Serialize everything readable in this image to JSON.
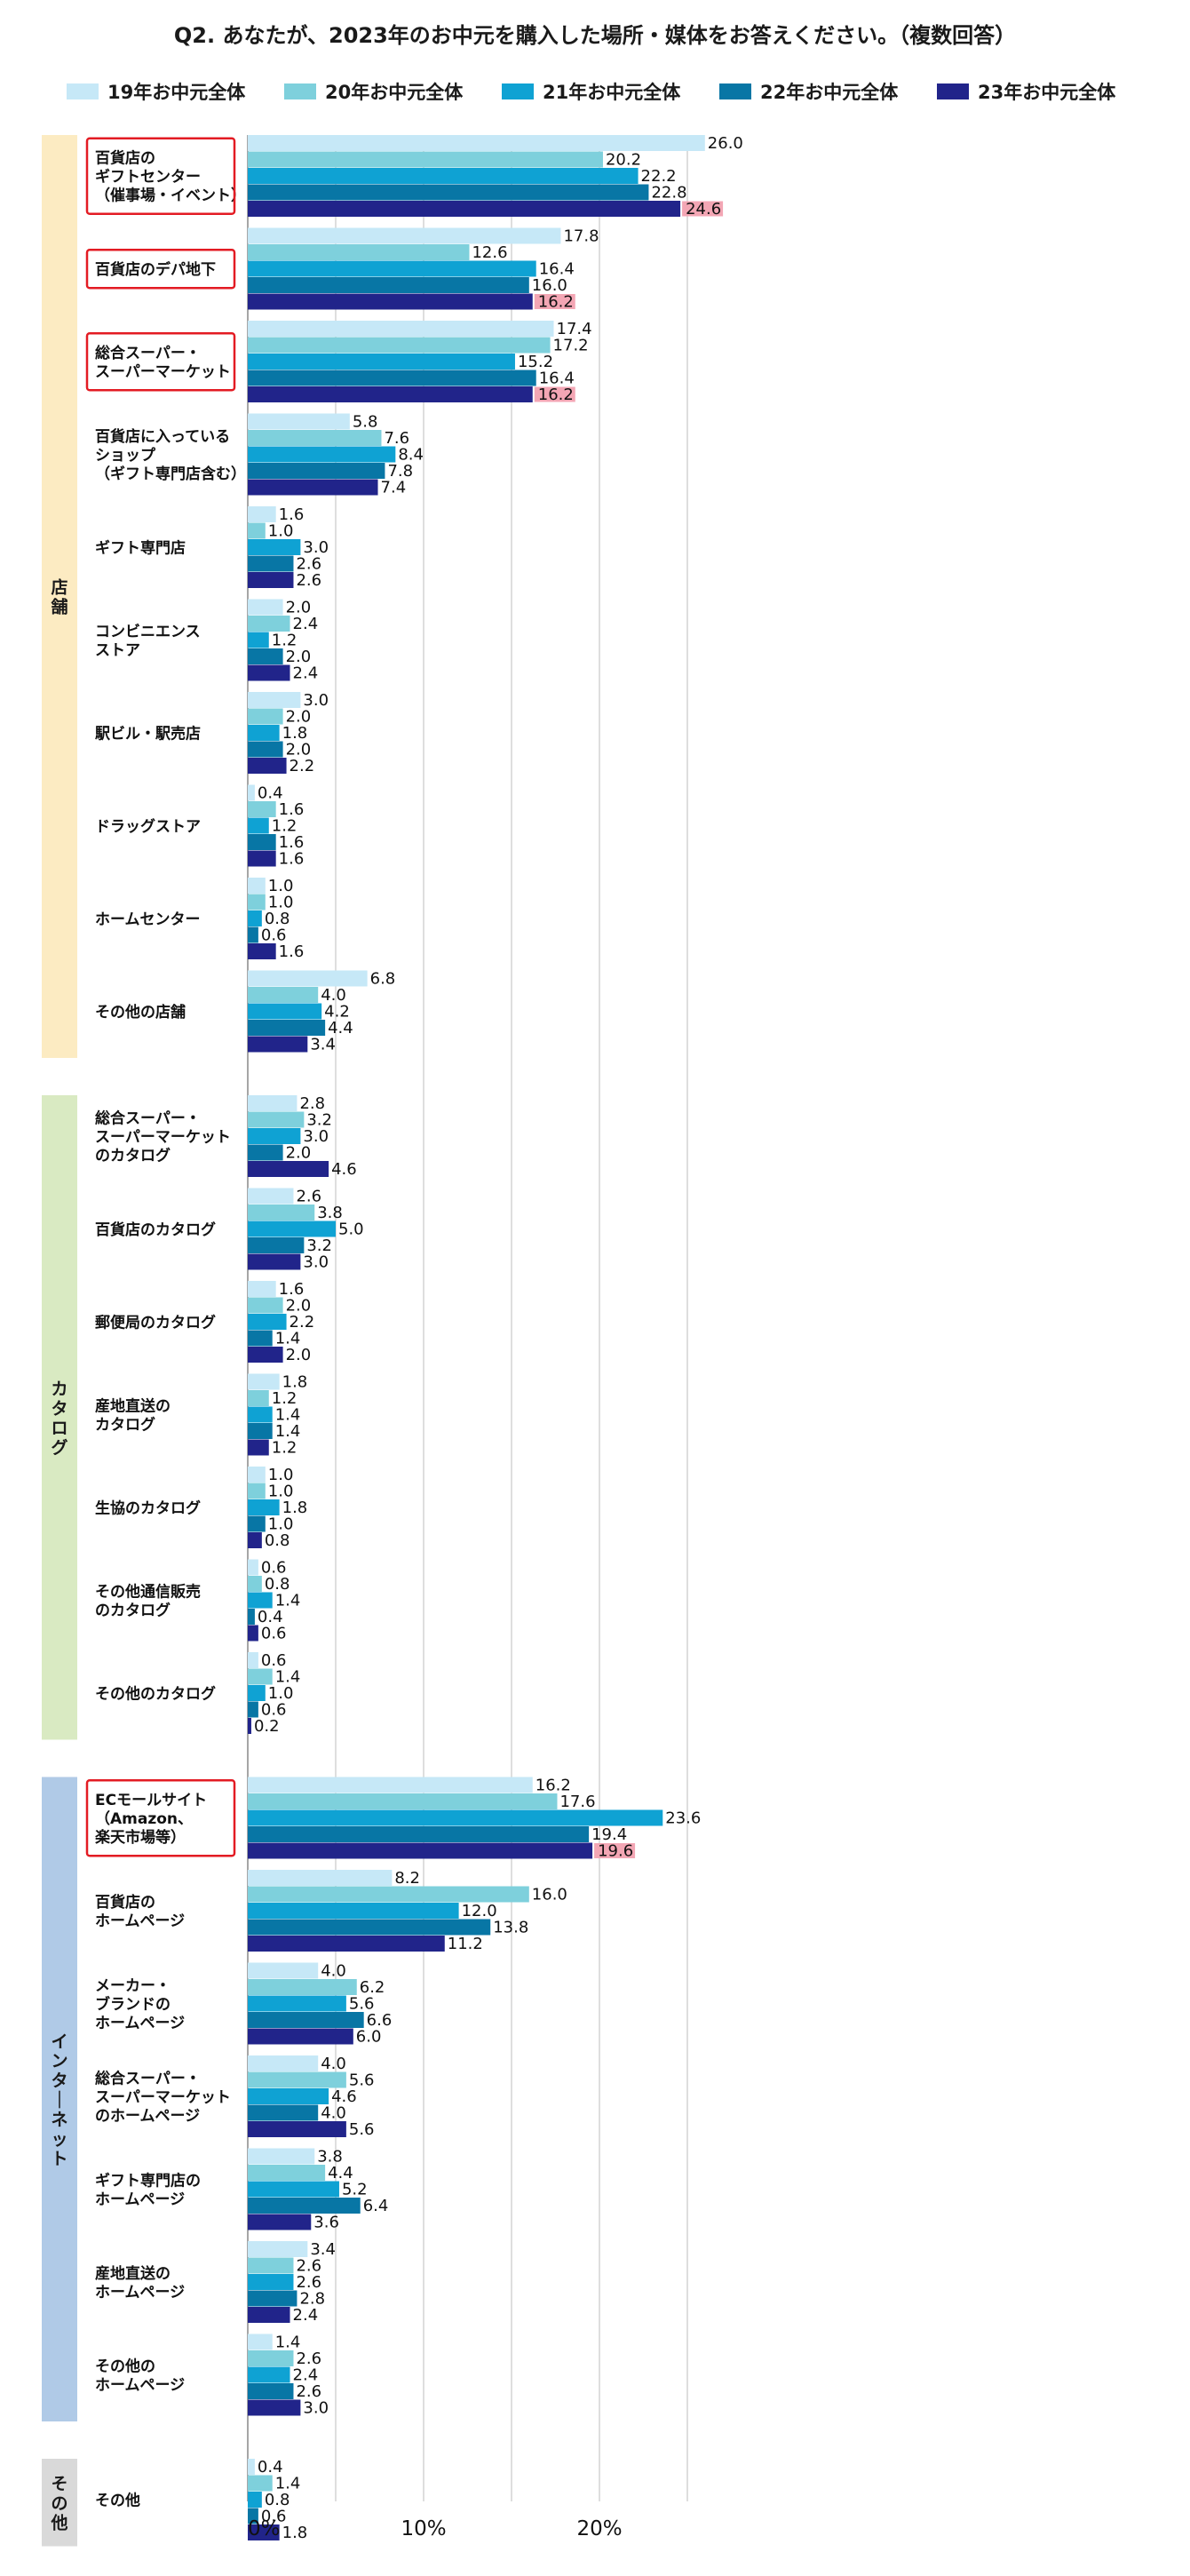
{
  "title": "Q2. あなたが、2023年のお中元を購入した場所・媒体をお答えください。（複数回答）",
  "chart_data": {
    "type": "bar",
    "orientation": "horizontal",
    "title": "Q2. あなたが、2023年のお中元を購入した場所・媒体をお答えください。（複数回答）",
    "xlim": [
      0,
      26
    ],
    "x_ticks": [
      {
        "value": 0,
        "label": "0%"
      },
      {
        "value": 10,
        "label": "10%"
      },
      {
        "value": 20,
        "label": "20%"
      }
    ],
    "grid": true,
    "legend_position": "top",
    "series": [
      {
        "name": "19年お中元全体",
        "color": "#c6e8f7"
      },
      {
        "name": "20年お中元全体",
        "color": "#7ed0dc"
      },
      {
        "name": "21年お中元全体",
        "color": "#0fa2d3"
      },
      {
        "name": "22年お中元全体",
        "color": "#0876a5"
      },
      {
        "name": "23年お中元全体",
        "color": "#21248a"
      }
    ],
    "highlight_color": "#f3a6b4",
    "groups": [
      {
        "label": "店舗",
        "color": "#fcebc2",
        "categories": [
          {
            "label": [
              "百貨店の",
              "ギフトセンター",
              "（催事場・イベント）"
            ],
            "boxed": true,
            "highlight_last": true,
            "values": [
              26.0,
              20.2,
              22.2,
              22.8,
              24.6
            ]
          },
          {
            "label": [
              "百貨店のデパ地下"
            ],
            "boxed": true,
            "highlight_last": true,
            "values": [
              17.8,
              12.6,
              16.4,
              16.0,
              16.2
            ]
          },
          {
            "label": [
              "総合スーパー・",
              "スーパーマーケット"
            ],
            "boxed": true,
            "highlight_last": true,
            "values": [
              17.4,
              17.2,
              15.2,
              16.4,
              16.2
            ]
          },
          {
            "label": [
              "百貨店に入っている",
              "ショップ",
              "（ギフト専門店含む）"
            ],
            "values": [
              5.8,
              7.6,
              8.4,
              7.8,
              7.4
            ]
          },
          {
            "label": [
              "ギフト専門店"
            ],
            "values": [
              1.6,
              1.0,
              3.0,
              2.6,
              2.6
            ]
          },
          {
            "label": [
              "コンビニエンス",
              "ストア"
            ],
            "values": [
              2.0,
              2.4,
              1.2,
              2.0,
              2.4
            ]
          },
          {
            "label": [
              "駅ビル・駅売店"
            ],
            "values": [
              3.0,
              2.0,
              1.8,
              2.0,
              2.2
            ]
          },
          {
            "label": [
              "ドラッグストア"
            ],
            "values": [
              0.4,
              1.6,
              1.2,
              1.6,
              1.6
            ]
          },
          {
            "label": [
              "ホームセンター"
            ],
            "values": [
              1.0,
              1.0,
              0.8,
              0.6,
              1.6
            ]
          },
          {
            "label": [
              "その他の店舗"
            ],
            "values": [
              6.8,
              4.0,
              4.2,
              4.4,
              3.4
            ]
          }
        ]
      },
      {
        "label": "カタログ",
        "color": "#d9eac2",
        "categories": [
          {
            "label": [
              "総合スーパー・",
              "スーパーマーケット",
              "のカタログ"
            ],
            "values": [
              2.8,
              3.2,
              3.0,
              2.0,
              4.6
            ]
          },
          {
            "label": [
              "百貨店のカタログ"
            ],
            "values": [
              2.6,
              3.8,
              5.0,
              3.2,
              3.0
            ]
          },
          {
            "label": [
              "郵便局のカタログ"
            ],
            "values": [
              1.6,
              2.0,
              2.2,
              1.4,
              2.0
            ]
          },
          {
            "label": [
              "産地直送の",
              "カタログ"
            ],
            "values": [
              1.8,
              1.2,
              1.4,
              1.4,
              1.2
            ]
          },
          {
            "label": [
              "生協のカタログ"
            ],
            "values": [
              1.0,
              1.0,
              1.8,
              1.0,
              0.8
            ]
          },
          {
            "label": [
              "その他通信販売",
              "のカタログ"
            ],
            "values": [
              0.6,
              0.8,
              1.4,
              0.4,
              0.6
            ]
          },
          {
            "label": [
              "その他のカタログ"
            ],
            "values": [
              0.6,
              1.4,
              1.0,
              0.6,
              0.2
            ]
          }
        ]
      },
      {
        "label": "インターネット",
        "color": "#b0cae7",
        "categories": [
          {
            "label": [
              "ECモールサイト",
              "（Amazon、",
              "楽天市場等）"
            ],
            "boxed": true,
            "highlight_last": true,
            "values": [
              16.2,
              17.6,
              23.6,
              19.4,
              19.6
            ]
          },
          {
            "label": [
              "百貨店の",
              "ホームページ"
            ],
            "values": [
              8.2,
              16.0,
              12.0,
              13.8,
              11.2
            ]
          },
          {
            "label": [
              "メーカー・",
              "ブランドの",
              "ホームページ"
            ],
            "values": [
              4.0,
              6.2,
              5.6,
              6.6,
              6.0
            ]
          },
          {
            "label": [
              "総合スーパー・",
              "スーパーマーケット",
              "のホームページ"
            ],
            "values": [
              4.0,
              5.6,
              4.6,
              4.0,
              5.6
            ]
          },
          {
            "label": [
              "ギフト専門店の",
              "ホームページ"
            ],
            "values": [
              3.8,
              4.4,
              5.2,
              6.4,
              3.6
            ]
          },
          {
            "label": [
              "産地直送の",
              "ホームページ"
            ],
            "values": [
              3.4,
              2.6,
              2.6,
              2.8,
              2.4
            ]
          },
          {
            "label": [
              "その他の",
              "ホームページ"
            ],
            "values": [
              1.4,
              2.6,
              2.4,
              2.6,
              3.0
            ]
          }
        ]
      },
      {
        "label": "その他",
        "color": "#d9d9d9",
        "categories": [
          {
            "label": [
              "その他"
            ],
            "values": [
              0.4,
              1.4,
              0.8,
              0.6,
              1.8
            ]
          }
        ]
      }
    ]
  }
}
